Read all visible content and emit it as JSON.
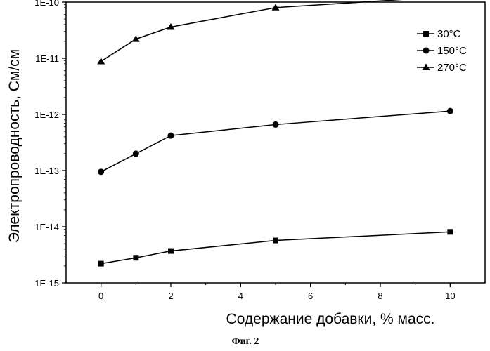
{
  "chart_data": {
    "type": "line",
    "title": "",
    "xlabel": "Содержание добавки, % масс.",
    "ylabel": "Электропроводность, См/см",
    "xlim": [
      -1,
      11
    ],
    "ylim": [
      1e-15,
      1e-10
    ],
    "yscale": "log",
    "x_ticks": [
      0,
      2,
      4,
      6,
      8,
      10
    ],
    "y_ticks": [
      1e-15,
      1e-14,
      1e-13,
      1e-12,
      1e-11,
      1e-10
    ],
    "y_tick_labels": [
      "1E-15",
      "1E-14",
      "1E-13",
      "1E-12",
      "1E-11",
      "1E-10"
    ],
    "legend_position": "top-right",
    "grid": false,
    "x": [
      0,
      1,
      2,
      5,
      10
    ],
    "series": [
      {
        "name": "30°C",
        "marker": "square",
        "values": [
          2.2e-15,
          2.8e-15,
          3.7e-15,
          5.7e-15,
          8.1e-15
        ]
      },
      {
        "name": "150°C",
        "marker": "circle",
        "values": [
          9.5e-14,
          2e-13,
          4.2e-13,
          6.6e-13,
          1.15e-12
        ]
      },
      {
        "name": "270°C",
        "marker": "triangle",
        "values": [
          8.8e-12,
          2.2e-11,
          3.6e-11,
          8e-11,
          1.26e-10
        ]
      }
    ],
    "caption": "Фиг. 2"
  }
}
